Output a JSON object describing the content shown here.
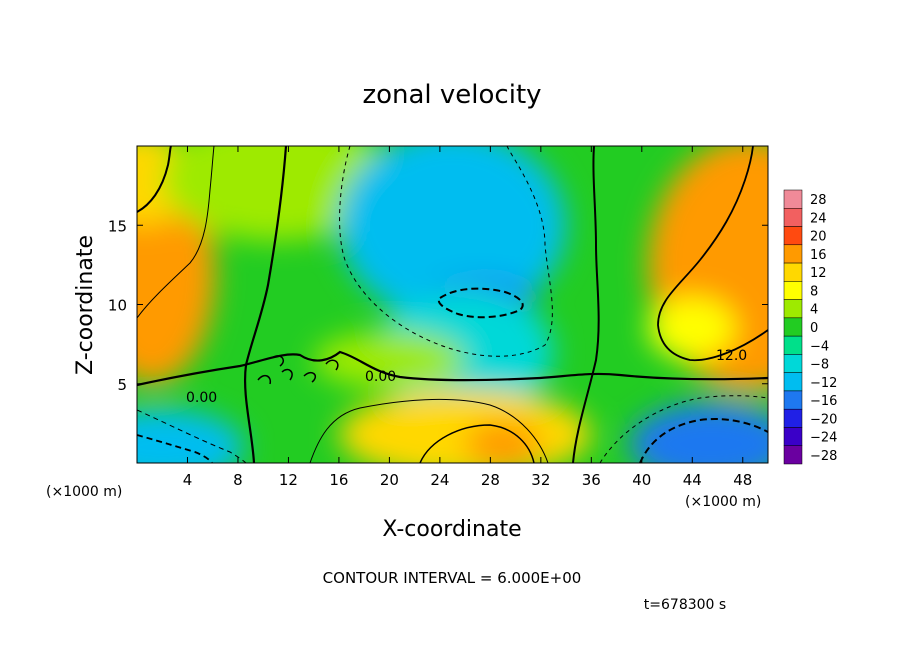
{
  "chart_data": {
    "type": "heatmap",
    "title": "zonal velocity",
    "xlabel": "X-coordinate",
    "ylabel": "Z-coordinate",
    "x_unit": "(×1000 m)",
    "z_unit": "(×1000 m)",
    "xlim": [
      0,
      50
    ],
    "ylim": [
      0,
      20
    ],
    "x_ticks": [
      4,
      8,
      12,
      16,
      20,
      24,
      28,
      32,
      36,
      40,
      44,
      48
    ],
    "y_ticks": [
      5,
      10,
      15
    ],
    "colorbar": {
      "levels": [
        28,
        24,
        20,
        16,
        12,
        8,
        4,
        0,
        -4,
        -8,
        -12,
        -16,
        -20,
        -24,
        -28
      ],
      "labels": [
        "28",
        "24",
        "20",
        "16",
        "12",
        "8",
        "4",
        "0",
        "−4",
        "−8",
        "−12",
        "−16",
        "−20",
        "−24",
        "−28"
      ],
      "colors": [
        "#f08a98",
        "#f26060",
        "#ff4a10",
        "#ff9a00",
        "#ffd800",
        "#ffff00",
        "#9eea00",
        "#22cc22",
        "#00e08a",
        "#00d8d8",
        "#00bdf0",
        "#1e78f0",
        "#2020e6",
        "#3a00c8",
        "#6a00a0"
      ]
    },
    "contour_interval": 6.0,
    "contour_labels": [
      "0.00",
      "0.00",
      "12.0"
    ],
    "notes": {
      "contour_interval_text": "CONTOUR INTERVAL = 6.000E+00",
      "time_text": "t=678300 s"
    },
    "fields": {
      "background": "#22cc22",
      "blobs": [
        {
          "x": 1.2,
          "z": 12.0,
          "rx": 5.0,
          "rz": 7.0,
          "v": 17
        },
        {
          "x": 0.5,
          "z": 18.0,
          "rx": 4.0,
          "rz": 3.0,
          "v": 12
        },
        {
          "x": 11.0,
          "z": 18.0,
          "rx": 9.0,
          "rz": 4.0,
          "v": 5
        },
        {
          "x": 25.0,
          "z": 15.0,
          "rx": 9.0,
          "rz": 6.0,
          "v": -11
        },
        {
          "x": 27.0,
          "z": 10.2,
          "rx": 4.5,
          "rz": 1.4,
          "v": -14
        },
        {
          "x": 26.0,
          "z": 7.0,
          "rx": 7.0,
          "rz": 4.0,
          "v": -6
        },
        {
          "x": 48.5,
          "z": 12.5,
          "rx": 8.0,
          "rz": 8.0,
          "v": 16
        },
        {
          "x": 44.0,
          "z": 8.5,
          "rx": 3.5,
          "rz": 2.0,
          "v": 11
        },
        {
          "x": 26.0,
          "z": 1.8,
          "rx": 10.0,
          "rz": 2.8,
          "v": 12
        },
        {
          "x": 29.0,
          "z": 1.2,
          "rx": 3.0,
          "rz": 1.4,
          "v": 17
        },
        {
          "x": 2.0,
          "z": 1.0,
          "rx": 6.5,
          "rz": 2.4,
          "v": -12
        },
        {
          "x": 45.5,
          "z": 1.2,
          "rx": 6.5,
          "rz": 2.6,
          "v": -14
        },
        {
          "x": 20.0,
          "z": 6.5,
          "rx": 6.0,
          "rz": 1.8,
          "v": 4
        }
      ]
    }
  }
}
